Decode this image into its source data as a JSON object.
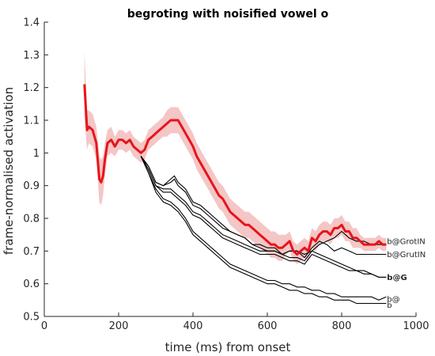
{
  "chart_data": {
    "type": "line",
    "title": "begroting with noisified vowel o",
    "xlabel": "time (ms) from onset",
    "ylabel": "frame-normalised activation",
    "xlim": [
      0,
      1000
    ],
    "ylim": [
      0.5,
      1.4
    ],
    "xticks": [
      0,
      200,
      400,
      600,
      800,
      1000
    ],
    "yticks": [
      0.5,
      0.6,
      0.7,
      0.8,
      0.9,
      1,
      1.1,
      1.2,
      1.3,
      1.4
    ],
    "xtick_labels": [
      "0",
      "200",
      "400",
      "600",
      "800",
      "1000"
    ],
    "ytick_labels": [
      "0.5",
      "0.6",
      "0.7",
      "0.8",
      "0.9",
      "1",
      "1.1",
      "1.2",
      "1.3",
      "1.4"
    ],
    "grid": false,
    "colors": {
      "main": "#e8141a",
      "band": "#f2bcbc",
      "others": "#000000"
    },
    "main_series": {
      "x": [
        108,
        115,
        120,
        130,
        140,
        148,
        153,
        158,
        163,
        170,
        180,
        190,
        200,
        210,
        220,
        230,
        240,
        250,
        260,
        270,
        280,
        290,
        300,
        310,
        320,
        330,
        340,
        350,
        360,
        370,
        380,
        390,
        400,
        410,
        420,
        430,
        440,
        450,
        460,
        470,
        480,
        490,
        500,
        510,
        520,
        530,
        540,
        550,
        560,
        570,
        580,
        590,
        600,
        610,
        620,
        630,
        640,
        650,
        660,
        670,
        680,
        690,
        700,
        710,
        720,
        730,
        740,
        750,
        760,
        770,
        780,
        790,
        800,
        810,
        820,
        830,
        840,
        850,
        860,
        870,
        880,
        890,
        900,
        910,
        920
      ],
      "y": [
        1.21,
        1.07,
        1.08,
        1.07,
        1.03,
        0.92,
        0.91,
        0.93,
        0.98,
        1.03,
        1.04,
        1.02,
        1.04,
        1.04,
        1.03,
        1.04,
        1.02,
        1.01,
        1.0,
        1.01,
        1.04,
        1.05,
        1.06,
        1.07,
        1.08,
        1.09,
        1.1,
        1.1,
        1.1,
        1.08,
        1.06,
        1.04,
        1.02,
        0.99,
        0.97,
        0.95,
        0.93,
        0.91,
        0.89,
        0.87,
        0.86,
        0.84,
        0.82,
        0.81,
        0.8,
        0.79,
        0.78,
        0.78,
        0.77,
        0.76,
        0.75,
        0.74,
        0.73,
        0.72,
        0.72,
        0.71,
        0.71,
        0.72,
        0.73,
        0.7,
        0.69,
        0.7,
        0.71,
        0.7,
        0.74,
        0.73,
        0.75,
        0.76,
        0.76,
        0.75,
        0.77,
        0.77,
        0.78,
        0.76,
        0.76,
        0.74,
        0.74,
        0.73,
        0.72,
        0.72,
        0.72,
        0.72,
        0.73,
        0.72,
        0.72
      ],
      "band_halfwidth": [
        0.1,
        0.06,
        0.05,
        0.05,
        0.05,
        0.07,
        0.07,
        0.06,
        0.05,
        0.04,
        0.04,
        0.03,
        0.03,
        0.03,
        0.03,
        0.03,
        0.03,
        0.03,
        0.03,
        0.03,
        0.03,
        0.03,
        0.03,
        0.03,
        0.03,
        0.04,
        0.04,
        0.04,
        0.04,
        0.04,
        0.04,
        0.04,
        0.04,
        0.04,
        0.04,
        0.04,
        0.04,
        0.04,
        0.04,
        0.04,
        0.04,
        0.04,
        0.04,
        0.04,
        0.04,
        0.04,
        0.04,
        0.04,
        0.04,
        0.04,
        0.04,
        0.04,
        0.04,
        0.04,
        0.04,
        0.04,
        0.04,
        0.03,
        0.03,
        0.03,
        0.03,
        0.03,
        0.03,
        0.03,
        0.03,
        0.03,
        0.03,
        0.03,
        0.03,
        0.03,
        0.03,
        0.03,
        0.03,
        0.03,
        0.03,
        0.03,
        0.03,
        0.02,
        0.02,
        0.02,
        0.02,
        0.02,
        0.02,
        0.02,
        0.02
      ]
    },
    "series": [
      {
        "name": "b@GrotIN",
        "x": [
          260,
          280,
          300,
          320,
          340,
          350,
          360,
          380,
          400,
          420,
          440,
          460,
          480,
          500,
          520,
          540,
          560,
          580,
          600,
          620,
          640,
          660,
          680,
          700,
          720,
          740,
          760,
          780,
          800,
          820,
          840,
          860,
          880,
          900,
          920
        ],
        "y": [
          0.99,
          0.96,
          0.91,
          0.9,
          0.92,
          0.93,
          0.91,
          0.89,
          0.85,
          0.84,
          0.82,
          0.8,
          0.78,
          0.76,
          0.75,
          0.74,
          0.72,
          0.72,
          0.71,
          0.71,
          0.69,
          0.7,
          0.7,
          0.69,
          0.7,
          0.72,
          0.73,
          0.74,
          0.76,
          0.74,
          0.73,
          0.73,
          0.72,
          0.72,
          0.72
        ]
      },
      {
        "name": "b@GrutIN",
        "x": [
          260,
          280,
          300,
          320,
          340,
          350,
          360,
          380,
          400,
          420,
          440,
          460,
          480,
          500,
          520,
          540,
          560,
          580,
          600,
          620,
          640,
          660,
          680,
          700,
          720,
          740,
          760,
          780,
          800,
          820,
          840,
          860,
          880,
          900,
          920
        ],
        "y": [
          0.99,
          0.96,
          0.91,
          0.9,
          0.91,
          0.92,
          0.9,
          0.88,
          0.84,
          0.83,
          0.81,
          0.79,
          0.77,
          0.76,
          0.75,
          0.74,
          0.72,
          0.71,
          0.7,
          0.7,
          0.69,
          0.7,
          0.7,
          0.68,
          0.71,
          0.73,
          0.72,
          0.7,
          0.71,
          0.7,
          0.69,
          0.69,
          0.69,
          0.69,
          0.69
        ]
      },
      {
        "name": "b@G",
        "x": [
          260,
          280,
          300,
          320,
          340,
          360,
          380,
          400,
          420,
          440,
          460,
          480,
          500,
          520,
          540,
          560,
          580,
          600,
          620,
          640,
          660,
          680,
          700,
          720,
          740,
          760,
          780,
          800,
          820,
          840,
          860,
          880,
          900,
          920
        ],
        "y": [
          0.99,
          0.95,
          0.9,
          0.89,
          0.89,
          0.87,
          0.85,
          0.82,
          0.81,
          0.79,
          0.77,
          0.75,
          0.74,
          0.73,
          0.72,
          0.71,
          0.7,
          0.7,
          0.7,
          0.69,
          0.68,
          0.68,
          0.67,
          0.7,
          0.69,
          0.68,
          0.67,
          0.66,
          0.65,
          0.64,
          0.64,
          0.63,
          0.62,
          0.62
        ]
      },
      {
        "name": "",
        "x": [
          260,
          280,
          300,
          320,
          340,
          360,
          380,
          400,
          420,
          440,
          460,
          480,
          500,
          520,
          540,
          560,
          580,
          600,
          620,
          640,
          660,
          680,
          700,
          720,
          740,
          760,
          780,
          800,
          820,
          840,
          860,
          880,
          900,
          920
        ],
        "y": [
          0.99,
          0.95,
          0.9,
          0.88,
          0.88,
          0.86,
          0.84,
          0.81,
          0.8,
          0.78,
          0.76,
          0.74,
          0.73,
          0.72,
          0.71,
          0.7,
          0.69,
          0.69,
          0.69,
          0.68,
          0.67,
          0.67,
          0.66,
          0.69,
          0.68,
          0.67,
          0.66,
          0.65,
          0.64,
          0.64,
          0.63,
          0.63,
          0.62,
          0.62
        ]
      },
      {
        "name": "b@",
        "x": [
          260,
          280,
          300,
          320,
          340,
          360,
          380,
          400,
          420,
          440,
          460,
          480,
          500,
          520,
          540,
          560,
          580,
          600,
          620,
          640,
          660,
          680,
          700,
          720,
          740,
          760,
          780,
          800,
          820,
          840,
          860,
          880,
          900,
          920
        ],
        "y": [
          0.99,
          0.94,
          0.89,
          0.86,
          0.85,
          0.83,
          0.8,
          0.76,
          0.74,
          0.72,
          0.7,
          0.68,
          0.66,
          0.65,
          0.64,
          0.63,
          0.62,
          0.61,
          0.61,
          0.6,
          0.6,
          0.59,
          0.59,
          0.58,
          0.58,
          0.57,
          0.57,
          0.56,
          0.56,
          0.56,
          0.56,
          0.56,
          0.55,
          0.56
        ]
      },
      {
        "name": "b",
        "x": [
          260,
          280,
          300,
          320,
          340,
          360,
          380,
          400,
          420,
          440,
          460,
          480,
          500,
          520,
          540,
          560,
          580,
          600,
          620,
          640,
          660,
          680,
          700,
          720,
          740,
          760,
          780,
          800,
          820,
          840,
          860,
          880,
          900,
          920
        ],
        "y": [
          0.99,
          0.94,
          0.88,
          0.85,
          0.84,
          0.82,
          0.79,
          0.75,
          0.73,
          0.71,
          0.69,
          0.67,
          0.65,
          0.64,
          0.63,
          0.62,
          0.61,
          0.6,
          0.6,
          0.59,
          0.58,
          0.58,
          0.57,
          0.57,
          0.56,
          0.56,
          0.55,
          0.55,
          0.55,
          0.54,
          0.54,
          0.54,
          0.54,
          0.54
        ]
      }
    ],
    "line_labels": [
      {
        "text": "b@GrotIN",
        "x": 922,
        "y": 0.73,
        "bold": false
      },
      {
        "text": "b@GrutIN",
        "x": 922,
        "y": 0.69,
        "bold": false
      },
      {
        "text": "b@G",
        "x": 922,
        "y": 0.62,
        "bold": true
      },
      {
        "text": "b@",
        "x": 922,
        "y": 0.553,
        "bold": false
      },
      {
        "text": "b",
        "x": 922,
        "y": 0.535,
        "bold": false
      }
    ]
  }
}
